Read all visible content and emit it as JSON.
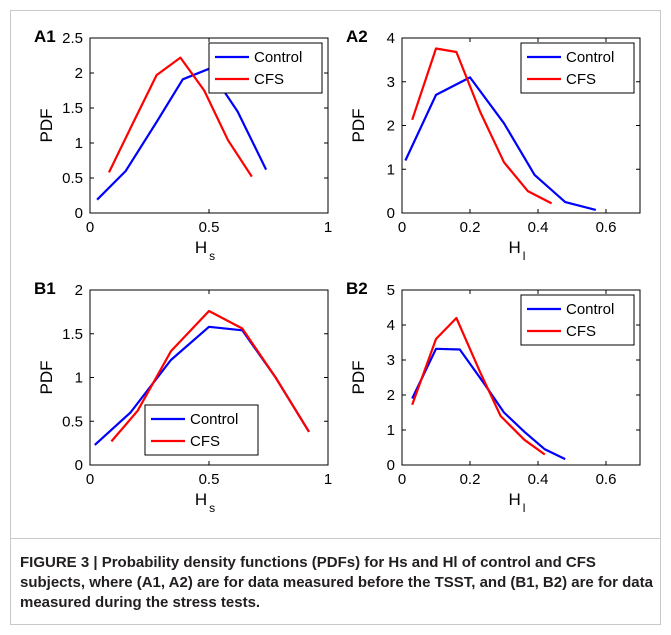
{
  "caption": {
    "text": "FIGURE 3 | Probability density functions (PDFs) for Hs and Hl of control and CFS subjects, where (A1, A2) are for data measured before the TSST, and (B1, B2) are for data measured during the stress tests."
  },
  "chart_data": [
    {
      "panel": "A1",
      "type": "line",
      "xlabel": "H",
      "xlabel_sub": "s",
      "ylabel": "PDF",
      "xlim": [
        0,
        1
      ],
      "ylim": [
        0,
        2.5
      ],
      "xticks": [
        0,
        0.5,
        1
      ],
      "xtick_labels": [
        "0",
        "0.5",
        "1"
      ],
      "yticks": [
        0,
        0.5,
        1,
        1.5,
        2,
        2.5
      ],
      "ytick_labels": [
        "0",
        "0.5",
        "1",
        "1.5",
        "2",
        "2.5"
      ],
      "legend_position": "top-right",
      "series": [
        {
          "name": "Control",
          "color": "#0000ff",
          "x": [
            0.03,
            0.15,
            0.28,
            0.39,
            0.5,
            0.62,
            0.74
          ],
          "y": [
            0.19,
            0.6,
            1.3,
            1.91,
            2.06,
            1.45,
            0.62
          ]
        },
        {
          "name": "CFS",
          "color": "#ff0000",
          "x": [
            0.08,
            0.18,
            0.28,
            0.38,
            0.48,
            0.58,
            0.68
          ],
          "y": [
            0.58,
            1.28,
            1.97,
            2.22,
            1.75,
            1.04,
            0.52
          ]
        }
      ]
    },
    {
      "panel": "A2",
      "type": "line",
      "xlabel": "H",
      "xlabel_sub": "l",
      "ylabel": "PDF",
      "xlim": [
        0,
        0.7
      ],
      "ylim": [
        0,
        4
      ],
      "xticks": [
        0,
        0.2,
        0.4,
        0.6
      ],
      "xtick_labels": [
        "0",
        "0.2",
        "0.4",
        "0.6"
      ],
      "yticks": [
        0,
        1,
        2,
        3,
        4
      ],
      "ytick_labels": [
        "0",
        "1",
        "2",
        "3",
        "4"
      ],
      "legend_position": "top-right",
      "series": [
        {
          "name": "Control",
          "color": "#0000ff",
          "x": [
            0.01,
            0.1,
            0.2,
            0.3,
            0.39,
            0.48,
            0.57
          ],
          "y": [
            1.2,
            2.7,
            3.1,
            2.05,
            0.87,
            0.25,
            0.07
          ]
        },
        {
          "name": "CFS",
          "color": "#ff0000",
          "x": [
            0.03,
            0.1,
            0.16,
            0.23,
            0.3,
            0.37,
            0.44
          ],
          "y": [
            2.13,
            3.76,
            3.68,
            2.31,
            1.16,
            0.5,
            0.22
          ]
        }
      ]
    },
    {
      "panel": "B1",
      "type": "line",
      "xlabel": "H",
      "xlabel_sub": "s",
      "ylabel": "PDF",
      "xlim": [
        0,
        1
      ],
      "ylim": [
        0,
        2
      ],
      "xticks": [
        0,
        0.5,
        1
      ],
      "xtick_labels": [
        "0",
        "0.5",
        "1"
      ],
      "yticks": [
        0,
        0.5,
        1,
        1.5,
        2
      ],
      "ytick_labels": [
        "0",
        "0.5",
        "1",
        "1.5",
        "2"
      ],
      "legend_position": "bottom-center",
      "series": [
        {
          "name": "Control",
          "color": "#0000ff",
          "x": [
            0.02,
            0.17,
            0.34,
            0.5,
            0.64,
            0.78,
            0.92
          ],
          "y": [
            0.23,
            0.6,
            1.2,
            1.58,
            1.54,
            1.0,
            0.38
          ]
        },
        {
          "name": "CFS",
          "color": "#ff0000",
          "x": [
            0.09,
            0.2,
            0.34,
            0.5,
            0.64,
            0.78,
            0.92
          ],
          "y": [
            0.27,
            0.62,
            1.3,
            1.76,
            1.56,
            1.0,
            0.38
          ]
        }
      ]
    },
    {
      "panel": "B2",
      "type": "line",
      "xlabel": "H",
      "xlabel_sub": "l",
      "ylabel": "PDF",
      "xlim": [
        0,
        0.7
      ],
      "ylim": [
        0,
        5
      ],
      "xticks": [
        0,
        0.2,
        0.4,
        0.6
      ],
      "xtick_labels": [
        "0",
        "0.2",
        "0.4",
        "0.6"
      ],
      "yticks": [
        0,
        1,
        2,
        3,
        4,
        5
      ],
      "ytick_labels": [
        "0",
        "1",
        "2",
        "3",
        "4",
        "5"
      ],
      "legend_position": "top-right",
      "series": [
        {
          "name": "Control",
          "color": "#0000ff",
          "x": [
            0.03,
            0.1,
            0.17,
            0.24,
            0.3,
            0.36,
            0.42,
            0.48
          ],
          "y": [
            1.9,
            3.32,
            3.3,
            2.35,
            1.5,
            0.95,
            0.45,
            0.17
          ]
        },
        {
          "name": "CFS",
          "color": "#ff0000",
          "x": [
            0.03,
            0.1,
            0.16,
            0.23,
            0.29,
            0.36,
            0.42
          ],
          "y": [
            1.72,
            3.6,
            4.2,
            2.65,
            1.4,
            0.72,
            0.3
          ]
        }
      ]
    }
  ]
}
